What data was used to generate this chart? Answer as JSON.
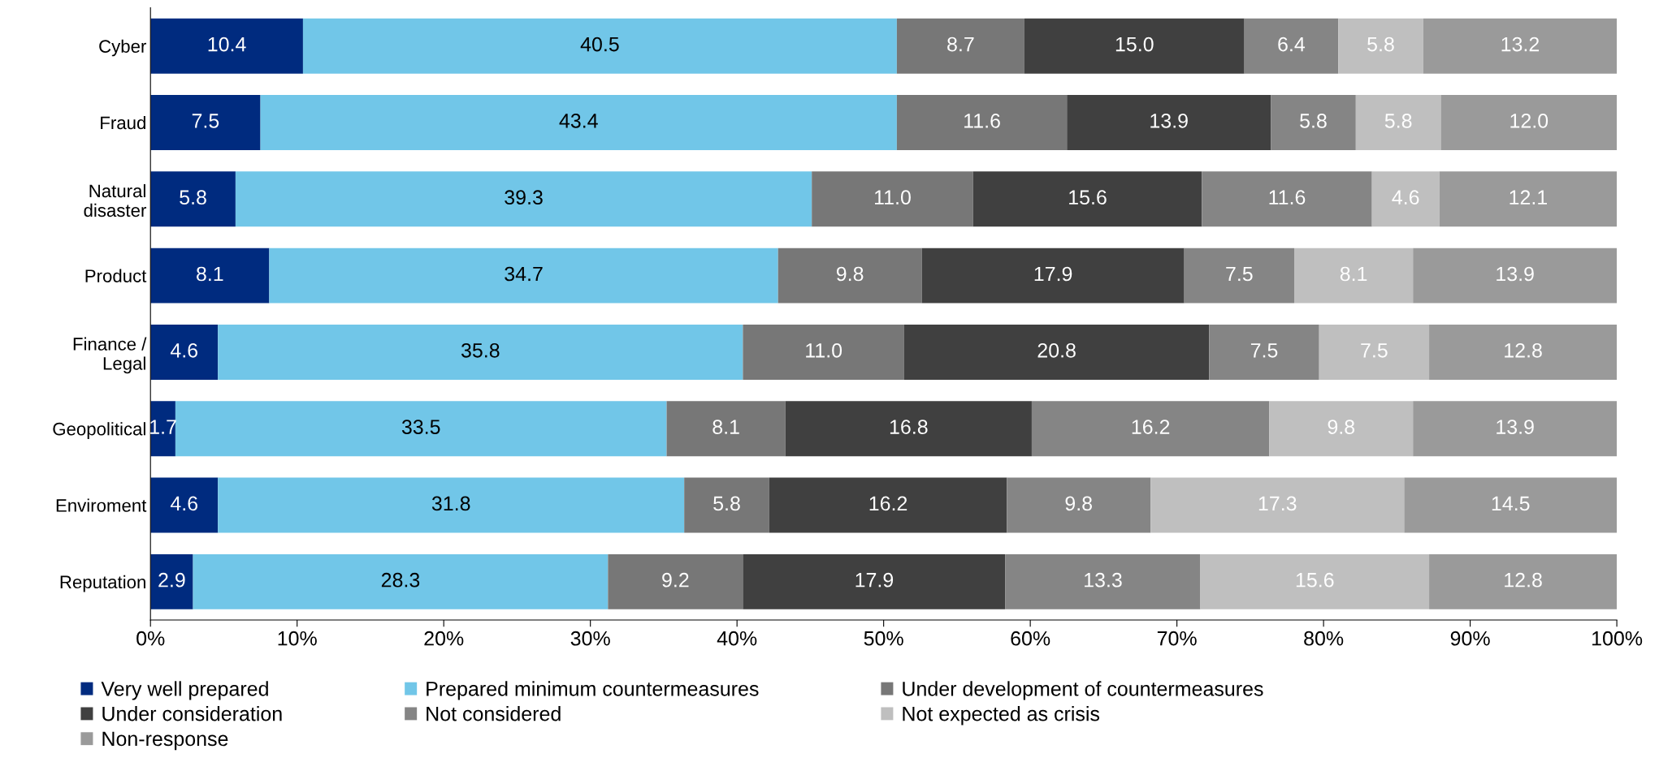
{
  "chart_data": {
    "type": "bar",
    "orientation": "horizontal",
    "stacked": true,
    "categories": [
      "Cyber",
      "Fraud",
      "Natural\ndisaster",
      "Product",
      "Finance /\nLegal",
      "Geopolitical",
      "Enviroment",
      "Reputation"
    ],
    "series": [
      {
        "name": "Very well prepared",
        "color": "#002b7f",
        "values": [
          10.4,
          7.5,
          5.8,
          8.1,
          4.6,
          1.7,
          4.6,
          2.9
        ],
        "value_labels": [
          "10.4",
          "7.5",
          "5.8",
          "8.1",
          "4.6",
          "1.7",
          "4.6",
          "2.9"
        ]
      },
      {
        "name": "Prepared minimum countermeasures",
        "color": "#71c6e8",
        "values": [
          40.5,
          43.4,
          39.3,
          34.7,
          35.8,
          33.5,
          31.8,
          28.3
        ],
        "value_labels": [
          "40.5",
          "43.4",
          "39.3",
          "34.7",
          "35.8",
          "33.5",
          "31.8",
          "28.3"
        ]
      },
      {
        "name": "Under development of countermeasures",
        "color": "#777777",
        "values": [
          8.7,
          11.6,
          11.0,
          9.8,
          11.0,
          8.1,
          5.8,
          9.2
        ],
        "value_labels": [
          "8.7",
          "11.6",
          "11.0",
          "9.8",
          "11.0",
          "8.1",
          "5.8",
          "9.2"
        ]
      },
      {
        "name": "Under consideration",
        "color": "#404040",
        "values": [
          15.0,
          13.9,
          15.6,
          17.9,
          20.8,
          16.8,
          16.2,
          17.9
        ],
        "value_labels": [
          "15.0",
          "13.9",
          "15.6",
          "17.9",
          "20.8",
          "16.8",
          "16.2",
          "17.9"
        ]
      },
      {
        "name": "Not considered",
        "color": "#858585",
        "values": [
          6.4,
          5.8,
          11.6,
          7.5,
          7.5,
          16.2,
          9.8,
          13.3
        ],
        "value_labels": [
          "6.4",
          "5.8",
          "11.6",
          "7.5",
          "7.5",
          "16.2",
          "9.8",
          "13.3"
        ]
      },
      {
        "name": "Not expected as crisis",
        "color": "#bfbfbf",
        "values": [
          5.8,
          5.8,
          4.6,
          8.1,
          7.5,
          9.8,
          17.3,
          15.6
        ],
        "value_labels": [
          "5.8",
          "5.8",
          "4.6",
          "8.1",
          "7.5",
          "9.8",
          "17.3",
          "15.6"
        ]
      },
      {
        "name": "Non-response",
        "color": "#9a9a9a",
        "values": [
          13.2,
          12.0,
          12.1,
          13.9,
          12.8,
          13.9,
          14.5,
          12.8
        ],
        "value_labels": [
          "13.2",
          "12.0",
          "12.1",
          "13.9",
          "12.8",
          "13.9",
          "14.5",
          "12.8"
        ]
      }
    ],
    "xlim": [
      0,
      100
    ],
    "xticks": [
      {
        "value": 0,
        "label": "0%"
      },
      {
        "value": 10,
        "label": "10%"
      },
      {
        "value": 20,
        "label": "20%"
      },
      {
        "value": 30,
        "label": "30%"
      },
      {
        "value": 40,
        "label": "40%"
      },
      {
        "value": 50,
        "label": "50%"
      },
      {
        "value": 60,
        "label": "60%"
      },
      {
        "value": 70,
        "label": "70%"
      },
      {
        "value": 80,
        "label": "80%"
      },
      {
        "value": 90,
        "label": "90%"
      },
      {
        "value": 100,
        "label": "100%"
      }
    ],
    "grid": false,
    "legend": "bottom"
  }
}
